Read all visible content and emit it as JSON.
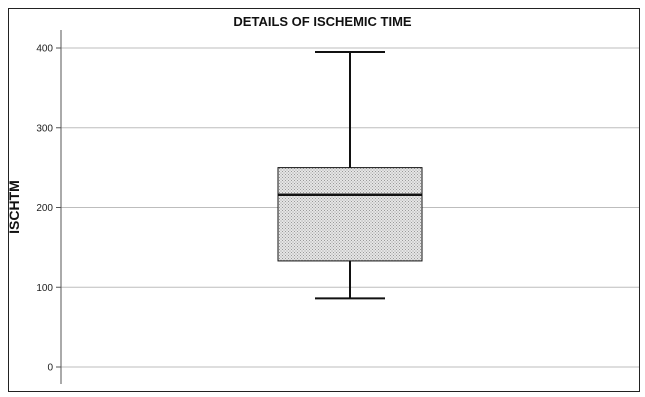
{
  "chart_data": {
    "type": "box",
    "title": "DETAILS OF ISCHEMIC TIME",
    "xlabel": "",
    "ylabel": "ISCHTM",
    "ylim": [
      0,
      400
    ],
    "yticks": [
      "0",
      "100",
      "200",
      "300",
      "400"
    ],
    "grid": true,
    "box": {
      "whisker_low": 86,
      "q1": 133,
      "median": 216,
      "q3": 250,
      "whisker_high": 395
    },
    "fill_color": "#d9d9d9",
    "line_color": "#111111",
    "grid_color": "#bdbdbd"
  }
}
